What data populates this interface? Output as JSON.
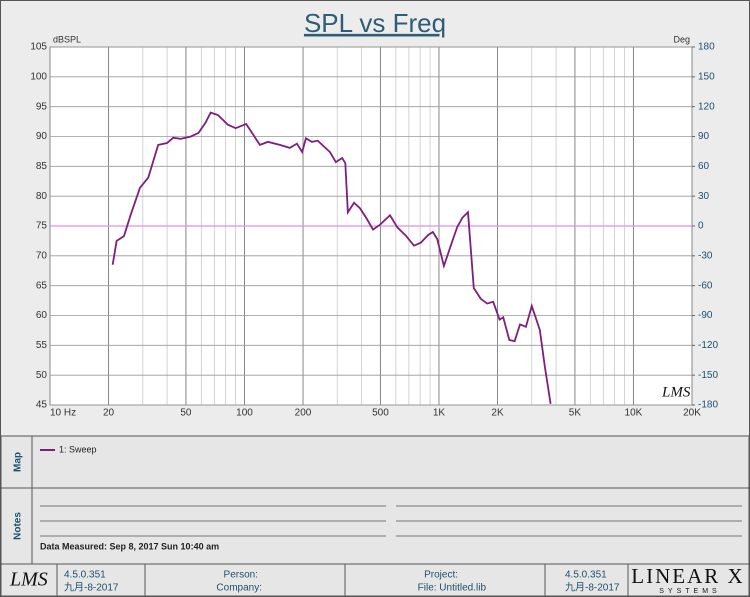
{
  "chart_data": {
    "type": "line",
    "title": "SPL vs Freq",
    "ylabel": "dBSPL",
    "y2label": "Deg",
    "watermark": "LMS",
    "xscale": "log",
    "xlim": [
      10,
      20000
    ],
    "xticks": [
      {
        "value": 10,
        "label": "10 Hz"
      },
      20,
      50,
      100,
      200,
      500,
      {
        "value": 1000,
        "label": "1K"
      },
      {
        "value": 2000,
        "label": "2K"
      },
      {
        "value": 5000,
        "label": "5K"
      },
      {
        "value": 10000,
        "label": "10K"
      },
      {
        "value": 20000,
        "label": "20K"
      }
    ],
    "ylim": [
      45,
      105
    ],
    "yticks": [
      45,
      50,
      55,
      60,
      65,
      70,
      75,
      80,
      85,
      90,
      95,
      100,
      105
    ],
    "y2lim": [
      -180,
      180
    ],
    "y2ticks": [
      -180,
      -150,
      -120,
      -90,
      -60,
      -30,
      0,
      30,
      60,
      90,
      120,
      150,
      180
    ],
    "grid": true,
    "x": [
      21,
      22,
      24,
      26,
      29,
      32,
      36,
      40,
      43,
      47,
      53,
      58,
      63,
      67,
      73,
      82,
      90,
      102,
      120,
      132,
      152,
      171,
      186,
      198,
      207,
      222,
      238,
      275,
      295,
      318,
      330,
      340,
      366,
      392,
      422,
      458,
      497,
      560,
      610,
      675,
      744,
      806,
      880,
      930,
      980,
      1060,
      1150,
      1240,
      1320,
      1410,
      1510,
      1640,
      1770,
      1900,
      2050,
      2140,
      2300,
      2450,
      2610,
      2800,
      3000,
      3300,
      3500,
      3750
    ],
    "series": [
      {
        "name": "1: Sweep",
        "color": "#7d1f7d",
        "values": [
          68.5,
          72.5,
          73.3,
          76.9,
          81.4,
          83.1,
          88.6,
          88.9,
          89.8,
          89.6,
          90,
          90.6,
          92.3,
          94,
          93.6,
          92,
          91.4,
          92.1,
          88.6,
          89.1,
          88.6,
          88.1,
          88.8,
          87.4,
          89.7,
          89.1,
          89.3,
          87.4,
          85.7,
          86.4,
          85.5,
          77.3,
          78.9,
          78,
          76.4,
          74.4,
          75.2,
          76.8,
          74.8,
          73.4,
          71.7,
          72.2,
          73.5,
          74,
          72.8,
          68.3,
          71.7,
          74.8,
          76.4,
          77.3,
          64.6,
          62.8,
          62,
          62.3,
          59.3,
          59.7,
          55.9,
          55.7,
          58.5,
          58.1,
          61.6,
          57.6,
          51.5,
          45.2
        ]
      }
    ],
    "phase_color": "#e58ee5"
  },
  "map_panel": {
    "label": "Map"
  },
  "notes_panel": {
    "label": "Notes",
    "data_measured": "Data Measured: Sep 8, 2017 Sun 10:40 am"
  },
  "footer": {
    "logo": "LMS",
    "version": "4.5.0.351",
    "date": "九月-8-2017",
    "person": "Person:",
    "company": "Company:",
    "project": "Project:",
    "file": "File: Untitled.lib",
    "version_right": "4.5.0.351",
    "date_right": "九月-8-2017",
    "brand": "LINEAR X",
    "brand_sub": "SYSTEMS"
  }
}
